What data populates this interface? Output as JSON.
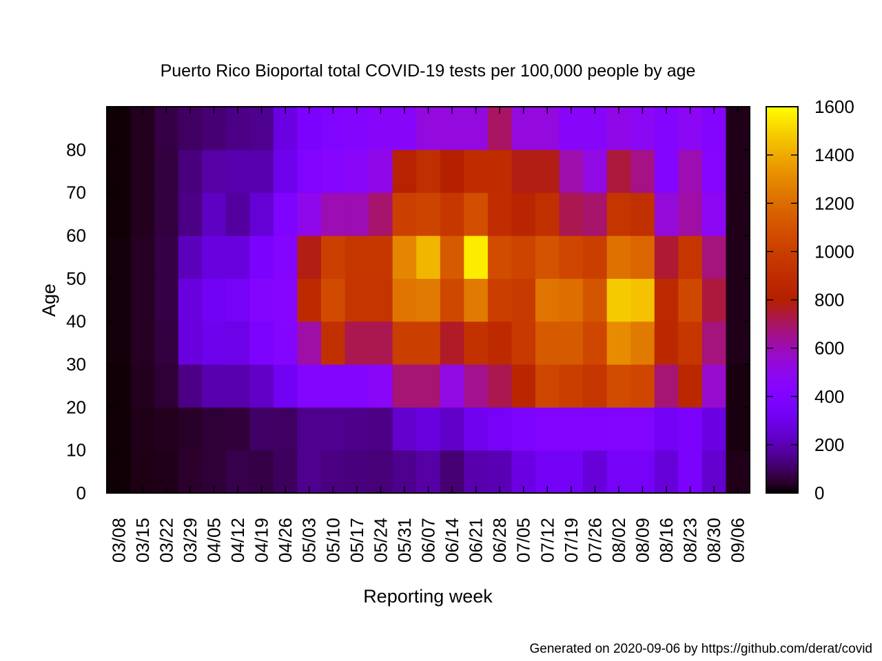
{
  "chart_data": {
    "type": "heatmap",
    "title": "Puerto Rico Bioportal total COVID-19 tests per 100,000 people by age",
    "xlabel": "Reporting week",
    "ylabel": "Age",
    "x": [
      "03/08",
      "03/15",
      "03/22",
      "03/29",
      "04/05",
      "04/12",
      "04/19",
      "04/26",
      "05/03",
      "05/10",
      "05/17",
      "05/24",
      "05/31",
      "06/07",
      "06/14",
      "06/21",
      "06/28",
      "07/05",
      "07/12",
      "07/19",
      "07/26",
      "08/02",
      "08/09",
      "08/16",
      "08/23",
      "08/30",
      "09/06"
    ],
    "y_bins": [
      "0-9",
      "10-19",
      "20-29",
      "30-39",
      "40-49",
      "50-59",
      "60-69",
      "70-79",
      "80+"
    ],
    "ylim": [
      0,
      90
    ],
    "yticks": [
      0,
      10,
      20,
      30,
      40,
      50,
      60,
      70,
      80
    ],
    "colorbar": {
      "min": 0,
      "max": 1600,
      "ticks": [
        0,
        200,
        400,
        600,
        800,
        1000,
        1200,
        1400,
        1600
      ],
      "colormap": "gnuplot"
    },
    "values": [
      [
        5,
        20,
        25,
        45,
        55,
        75,
        70,
        95,
        150,
        135,
        130,
        125,
        150,
        180,
        120,
        190,
        200,
        280,
        330,
        330,
        260,
        340,
        340,
        260,
        370,
        240,
        25
      ],
      [
        5,
        25,
        30,
        40,
        55,
        60,
        105,
        100,
        150,
        150,
        145,
        140,
        240,
        270,
        230,
        310,
        340,
        385,
        400,
        400,
        400,
        410,
        410,
        330,
        370,
        280,
        15
      ],
      [
        5,
        30,
        55,
        140,
        190,
        190,
        230,
        320,
        420,
        420,
        420,
        460,
        680,
        680,
        520,
        650,
        720,
        850,
        1040,
        1000,
        950,
        1070,
        1040,
        680,
        860,
        560,
        15
      ],
      [
        10,
        35,
        65,
        270,
        300,
        290,
        380,
        420,
        620,
        920,
        720,
        720,
        1000,
        1000,
        760,
        930,
        880,
        970,
        1130,
        1130,
        1040,
        1310,
        1250,
        860,
        960,
        670,
        25
      ],
      [
        10,
        35,
        70,
        270,
        320,
        340,
        420,
        440,
        880,
        1060,
        950,
        950,
        1230,
        1250,
        1050,
        1250,
        1000,
        980,
        1230,
        1210,
        1110,
        1480,
        1460,
        870,
        1050,
        740,
        25
      ],
      [
        10,
        35,
        70,
        210,
        270,
        270,
        370,
        430,
        780,
        1010,
        960,
        960,
        1290,
        1430,
        1130,
        1560,
        1070,
        1030,
        1100,
        1040,
        1000,
        1220,
        1180,
        750,
        950,
        670,
        25
      ],
      [
        5,
        30,
        65,
        140,
        220,
        170,
        250,
        390,
        500,
        600,
        600,
        690,
        1010,
        1030,
        960,
        1080,
        900,
        840,
        910,
        720,
        690,
        950,
        920,
        540,
        620,
        480,
        25
      ],
      [
        5,
        30,
        65,
        130,
        180,
        190,
        190,
        300,
        400,
        440,
        460,
        510,
        820,
        910,
        810,
        890,
        890,
        780,
        780,
        610,
        520,
        740,
        660,
        430,
        600,
        440,
        25
      ],
      [
        5,
        30,
        70,
        100,
        120,
        140,
        150,
        280,
        370,
        400,
        420,
        450,
        450,
        530,
        530,
        530,
        700,
        530,
        530,
        450,
        450,
        510,
        480,
        420,
        480,
        420,
        25
      ]
    ]
  },
  "footer": {
    "credit": "Generated on 2020-09-06 by https://github.com/derat/covid"
  }
}
